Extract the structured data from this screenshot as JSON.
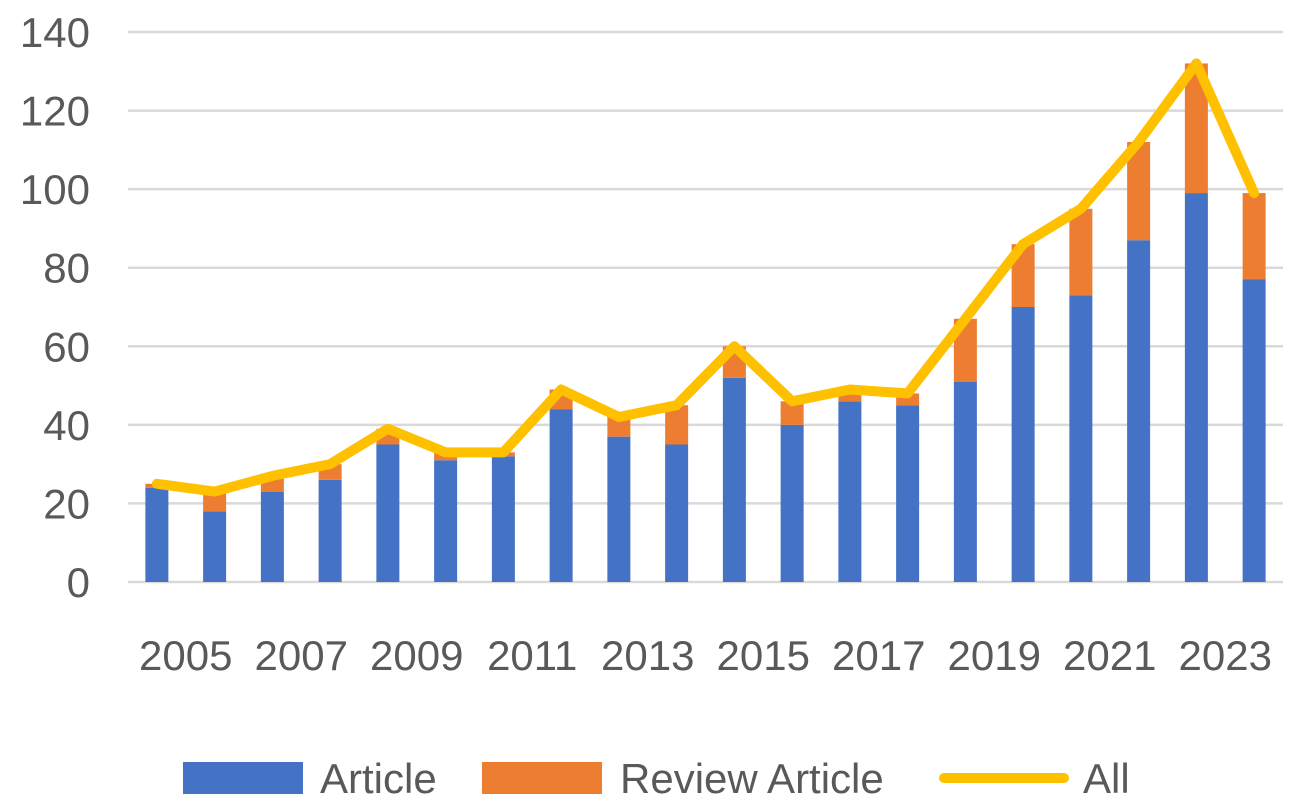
{
  "chart_data": {
    "type": "bar",
    "stacked": true,
    "title": "",
    "xlabel": "",
    "ylabel": "",
    "ylim": [
      0,
      140
    ],
    "yticks": [
      0,
      20,
      40,
      60,
      80,
      100,
      120,
      140
    ],
    "grid": true,
    "legend_position": "bottom",
    "categories": [
      "2005",
      "2006",
      "2007",
      "2008",
      "2009",
      "2010",
      "2011",
      "2012",
      "2013",
      "2014",
      "2015",
      "2016",
      "2017",
      "2018",
      "2019",
      "2020",
      "2021",
      "2022",
      "2023",
      "2024"
    ],
    "x_tick_labels": [
      "2005",
      "2007",
      "2009",
      "2011",
      "2013",
      "2015",
      "2017",
      "2019",
      "2021",
      "2023"
    ],
    "series": [
      {
        "name": "Article",
        "type": "bar",
        "color": "#4472C4",
        "values": [
          24,
          18,
          23,
          26,
          35,
          31,
          32,
          44,
          37,
          35,
          52,
          40,
          46,
          45,
          51,
          70,
          73,
          87,
          99,
          77
        ]
      },
      {
        "name": "Review Article",
        "type": "bar",
        "color": "#ED7D31",
        "values": [
          1,
          5,
          4,
          4,
          4,
          2,
          1,
          5,
          5,
          10,
          8,
          6,
          3,
          3,
          16,
          16,
          22,
          25,
          33,
          22
        ]
      },
      {
        "name": "All",
        "type": "line",
        "color": "#FFC000",
        "values": [
          25,
          23,
          27,
          30,
          39,
          33,
          33,
          49,
          42,
          45,
          60,
          46,
          49,
          48,
          67,
          86,
          95,
          112,
          132,
          99
        ]
      }
    ]
  }
}
